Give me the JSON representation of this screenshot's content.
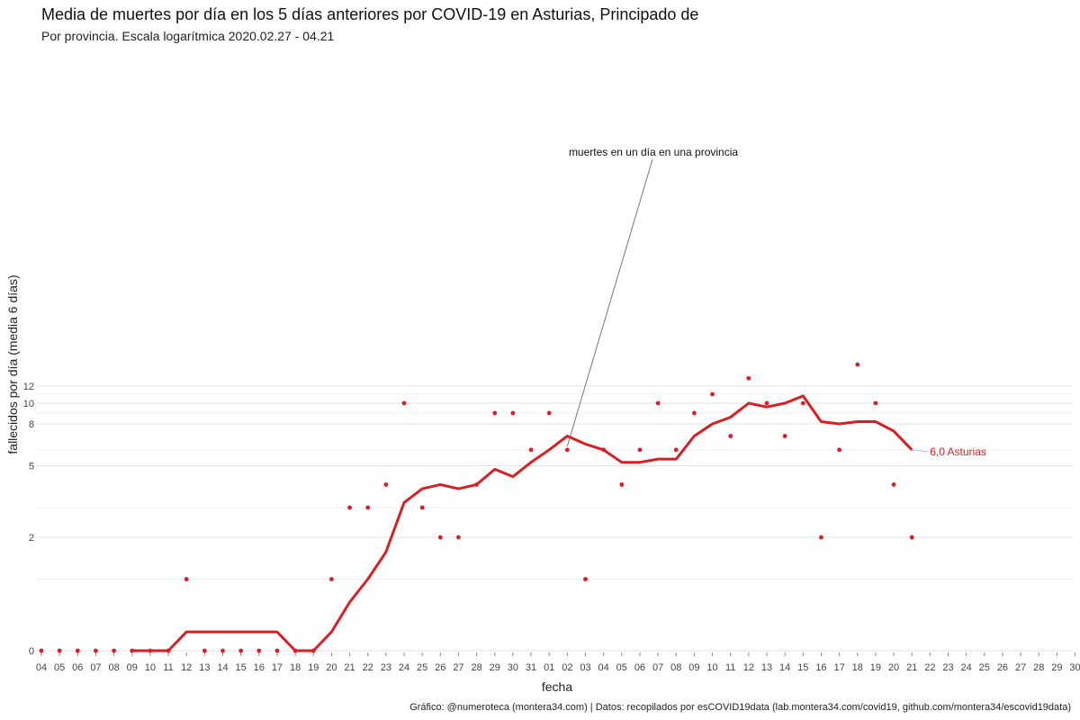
{
  "title": "Media de muertes por día en los 5 días anteriores por COVID-19 en Asturias, Principado de",
  "subtitle": "Por provincia. Escala logarítmica  2020.02.27 - 04.21",
  "caption": "Gráfico: @numeroteca (montera34.com) | Datos: recopilados por esCOVID19data (lab.montera34.com/covid19, github.com/montera34/escovid19data)",
  "chart_data": {
    "type": "line",
    "xlabel": "fecha",
    "ylabel": "fallecidos por día (media 6 días)",
    "yscale": "log1p",
    "y_ticks": [
      0,
      2,
      5,
      8,
      10,
      12
    ],
    "y_minor_ticks": [
      1,
      3,
      6,
      9,
      11
    ],
    "x_tick_labels": [
      "04",
      "05",
      "06",
      "07",
      "08",
      "09",
      "10",
      "11",
      "12",
      "13",
      "14",
      "15",
      "16",
      "17",
      "18",
      "19",
      "20",
      "21",
      "22",
      "23",
      "24",
      "25",
      "26",
      "27",
      "28",
      "29",
      "30",
      "31",
      "01",
      "02",
      "03",
      "04",
      "05",
      "06",
      "07",
      "08",
      "09",
      "10",
      "11",
      "12",
      "13",
      "14",
      "15",
      "16",
      "17",
      "18",
      "19",
      "20",
      "21",
      "22",
      "23",
      "24",
      "25",
      "26",
      "27",
      "28",
      "29",
      "30"
    ],
    "grid": true,
    "color": "#d62024",
    "series": [
      {
        "name": "Asturias",
        "type": "line",
        "start_index": 5,
        "values": [
          0,
          0,
          0,
          0.2,
          0.2,
          0.2,
          0.2,
          0.2,
          0.2,
          0,
          0,
          0.2,
          0.6,
          1.0,
          1.6,
          3.2,
          3.8,
          4.0,
          3.8,
          4.0,
          4.8,
          4.4,
          5.2,
          6.0,
          7.0,
          6.4,
          6.0,
          5.2,
          5.2,
          5.4,
          5.4,
          7.0,
          8.0,
          8.6,
          10.0,
          9.6,
          10.0,
          10.8,
          8.2,
          8.0,
          8.2,
          8.2,
          7.4,
          6.0
        ],
        "end_label": "6,0 Asturias"
      },
      {
        "name": "muertes en un día en una provincia",
        "type": "scatter",
        "start_index": 0,
        "values": [
          0,
          0,
          0,
          0,
          0,
          0,
          0,
          0,
          1,
          0,
          0,
          0,
          0,
          0,
          0,
          0,
          1,
          3,
          3,
          4,
          10,
          3,
          2,
          2,
          4,
          9,
          9,
          6,
          9,
          6,
          1,
          6,
          4,
          6,
          10,
          6,
          9,
          11,
          7,
          13,
          10,
          7,
          10,
          2,
          6,
          15,
          10,
          4,
          2
        ]
      }
    ],
    "annotation": {
      "text": "muertes en un día en una provincia",
      "point_index": 29
    }
  }
}
